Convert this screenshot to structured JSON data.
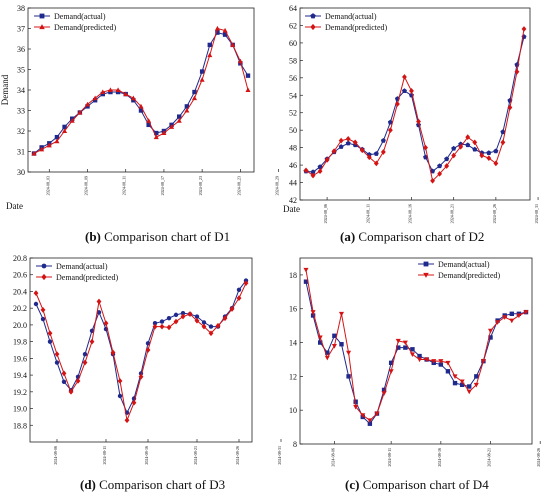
{
  "colors": {
    "actual": "#1f2a8c",
    "predicted": "#d41414",
    "axis": "#222222",
    "background": "#ffffff"
  },
  "chart_data": [
    {
      "id": "D1",
      "type": "line",
      "caption_letter": "(b)",
      "caption_text": " Comparison chart of D1",
      "xlabel": "Date",
      "ylabel": "Demand",
      "ylim": [
        30,
        38
      ],
      "yticks": [
        30,
        31,
        32,
        33,
        34,
        35,
        36,
        37,
        38
      ],
      "xticks": [
        {
          "i": 2,
          "label": "2024-08_03"
        },
        {
          "i": 7,
          "label": "2024-08_09"
        },
        {
          "i": 12,
          "label": "2024-08_11"
        },
        {
          "i": 17,
          "label": "2024-08_17"
        },
        {
          "i": 22,
          "label": "2024-08_23"
        },
        {
          "i": 27,
          "label": "2024-08_23"
        },
        {
          "i": 32,
          "label": "2024-08_29"
        }
      ],
      "legend_position": "top-left",
      "marker_actual": "square",
      "marker_predicted": "triangle-up",
      "series": [
        {
          "name": "Demand(actual)",
          "values": [
            30.9,
            31.2,
            31.4,
            31.7,
            32.2,
            32.6,
            32.9,
            33.2,
            33.5,
            33.8,
            33.9,
            33.9,
            33.8,
            33.5,
            33.0,
            32.3,
            31.9,
            32.0,
            32.3,
            32.7,
            33.2,
            33.9,
            34.9,
            36.2,
            36.8,
            36.7,
            36.2,
            35.3,
            34.7
          ]
        },
        {
          "name": "Demand(predicted)",
          "values": [
            30.9,
            31.1,
            31.3,
            31.5,
            32.0,
            32.5,
            32.9,
            33.3,
            33.6,
            33.9,
            34.0,
            34.0,
            33.8,
            33.6,
            33.2,
            32.5,
            31.7,
            31.9,
            32.2,
            32.5,
            33.0,
            33.6,
            34.5,
            35.7,
            37.0,
            36.9,
            36.2,
            35.4,
            34.0
          ]
        }
      ]
    },
    {
      "id": "D2",
      "type": "line",
      "caption_letter": "(a)",
      "caption_text": " Comparison chart of D2",
      "xlabel": "Date",
      "ylabel": "",
      "ylim": [
        42,
        64
      ],
      "yticks": [
        42,
        44,
        46,
        48,
        50,
        52,
        54,
        56,
        58,
        60,
        62,
        64
      ],
      "xticks": [
        {
          "i": 3,
          "label": "2024-08_06"
        },
        {
          "i": 9,
          "label": "2024-08_11"
        },
        {
          "i": 15,
          "label": "2024-08_16"
        },
        {
          "i": 21,
          "label": "2024-08_21"
        },
        {
          "i": 27,
          "label": "2024-08_26"
        },
        {
          "i": 33,
          "label": "2024-08_31"
        }
      ],
      "legend_position": "top-left",
      "marker_actual": "pentagon",
      "marker_predicted": "diamond",
      "series": [
        {
          "name": "Demand(actual)",
          "values": [
            45.3,
            45.2,
            45.8,
            46.7,
            47.5,
            48.1,
            48.5,
            48.3,
            47.8,
            47.2,
            47.3,
            48.8,
            50.9,
            53.6,
            54.5,
            54.0,
            50.6,
            46.9,
            45.3,
            45.9,
            46.7,
            47.9,
            48.4,
            48.3,
            47.8,
            47.4,
            47.4,
            47.6,
            49.8,
            53.4,
            57.5,
            60.7
          ]
        },
        {
          "name": "Demand(predicted)",
          "values": [
            45.4,
            44.8,
            45.3,
            46.6,
            47.6,
            48.8,
            49.0,
            48.6,
            47.7,
            46.9,
            46.2,
            47.5,
            50.0,
            53.0,
            56.1,
            54.5,
            51.0,
            48.0,
            44.2,
            45.0,
            45.9,
            47.1,
            48.1,
            49.2,
            48.6,
            47.1,
            46.8,
            46.2,
            48.6,
            52.6,
            56.7,
            61.6
          ]
        }
      ]
    },
    {
      "id": "D3",
      "type": "line",
      "caption_letter": "(d)",
      "caption_text": " Comparison chart of D3",
      "xlabel": "",
      "ylabel": "",
      "ylim": [
        18.6,
        20.8
      ],
      "yticks": [
        18.8,
        19.0,
        19.2,
        19.4,
        19.6,
        19.8,
        20.0,
        20.2,
        20.4,
        20.6,
        20.8
      ],
      "xticks": [
        {
          "i": 3,
          "label": "2024-08-06"
        },
        {
          "i": 10,
          "label": "2024-08-11"
        },
        {
          "i": 16,
          "label": "2024-08-16"
        },
        {
          "i": 23,
          "label": "2024-08-21"
        },
        {
          "i": 29,
          "label": "2024-08-26"
        },
        {
          "i": 35,
          "label": "2024-08-31"
        }
      ],
      "legend_position": "top-left",
      "marker_actual": "circle",
      "marker_predicted": "diamond",
      "series": [
        {
          "name": "Demand(actual)",
          "values": [
            20.25,
            20.07,
            19.8,
            19.55,
            19.32,
            19.22,
            19.38,
            19.65,
            19.93,
            20.15,
            19.95,
            19.65,
            19.15,
            18.95,
            19.12,
            19.42,
            19.78,
            20.02,
            20.04,
            20.08,
            20.12,
            20.14,
            20.13,
            20.1,
            20.03,
            19.98,
            19.98,
            20.1,
            20.2,
            20.42,
            20.53
          ]
        },
        {
          "name": "Demand(predicted)",
          "values": [
            20.38,
            20.18,
            19.9,
            19.65,
            19.42,
            19.2,
            19.33,
            19.55,
            19.8,
            20.28,
            20.02,
            19.67,
            19.33,
            18.86,
            19.07,
            19.38,
            19.7,
            19.98,
            19.98,
            19.97,
            20.04,
            20.1,
            20.13,
            20.05,
            19.98,
            19.9,
            19.99,
            20.08,
            20.19,
            20.32,
            20.5
          ]
        }
      ]
    },
    {
      "id": "D4",
      "type": "line",
      "caption_letter": "(c)",
      "caption_text": " Comparison chart of D4",
      "xlabel": "",
      "ylabel": "",
      "ylim": [
        8,
        19
      ],
      "yticks": [
        8,
        10,
        12,
        14,
        16,
        18
      ],
      "xticks": [
        {
          "i": 4,
          "label": "2024-08-06"
        },
        {
          "i": 12,
          "label": "2024-08-11"
        },
        {
          "i": 19,
          "label": "2024-08-16"
        },
        {
          "i": 26,
          "label": "2024-08-21"
        },
        {
          "i": 33,
          "label": "2024-08-26"
        },
        {
          "i": 40,
          "label": "2024-08-31"
        }
      ],
      "legend_position": "top-right",
      "marker_actual": "square",
      "marker_predicted": "triangle-down",
      "series": [
        {
          "name": "Demand(actual)",
          "values": [
            17.6,
            15.6,
            14.0,
            13.4,
            14.4,
            13.9,
            12.0,
            10.5,
            9.6,
            9.2,
            9.8,
            11.2,
            12.8,
            13.7,
            13.7,
            13.6,
            13.2,
            13.0,
            12.8,
            12.7,
            12.3,
            11.6,
            11.5,
            11.4,
            12.0,
            12.9,
            14.3,
            15.3,
            15.6,
            15.7,
            15.7,
            15.8
          ]
        },
        {
          "name": "Demand(predicted)",
          "values": [
            18.3,
            15.8,
            14.3,
            13.1,
            13.8,
            15.7,
            13.4,
            10.2,
            9.7,
            9.4,
            9.8,
            11.0,
            12.3,
            14.1,
            14.0,
            13.3,
            13.0,
            13.0,
            12.9,
            12.9,
            12.8,
            12.0,
            11.7,
            11.1,
            11.5,
            12.9,
            14.7,
            15.2,
            15.5,
            15.3,
            15.6,
            15.8
          ]
        }
      ]
    }
  ]
}
